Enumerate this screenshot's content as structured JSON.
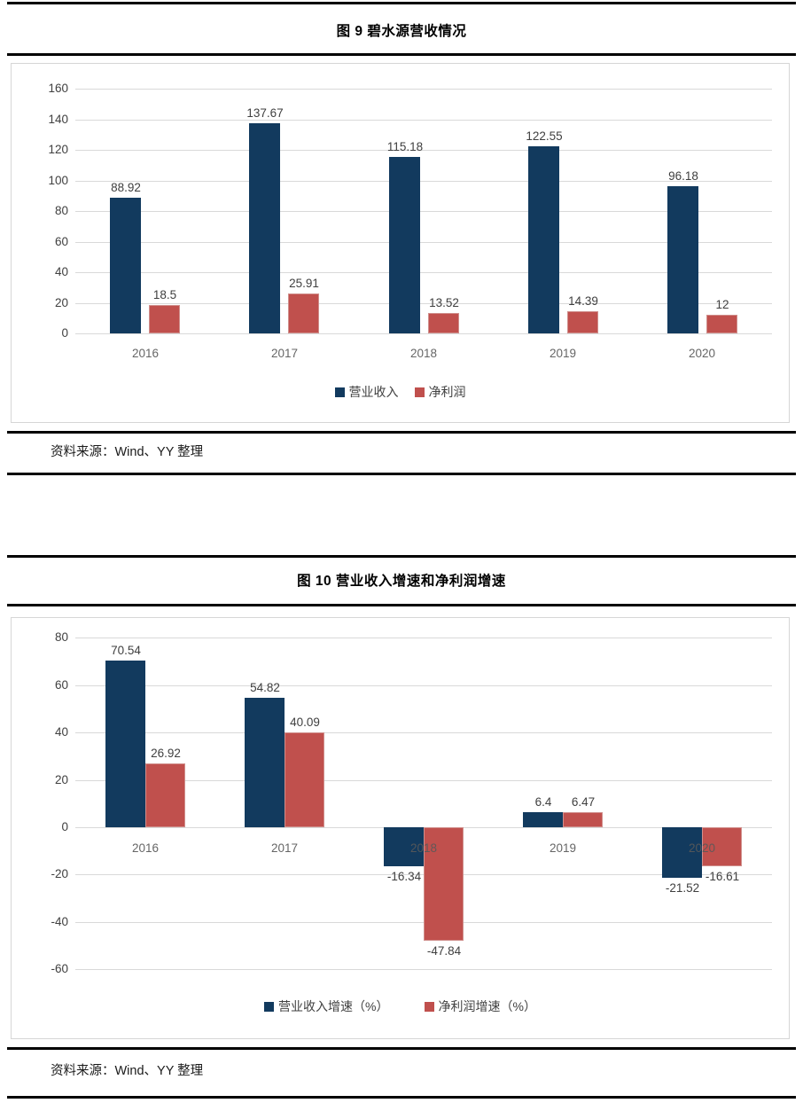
{
  "page": {
    "figure9": {
      "title": "图 9 碧水源营收情况",
      "source": "资料来源：Wind、YY 整理"
    },
    "figure10": {
      "title": "图 10 营业收入增速和净利润增速",
      "source": "资料来源：Wind、YY 整理"
    }
  },
  "colors": {
    "revenue_bar": "#123a5e",
    "profit_bar": "#c0504d",
    "gridline": "#d9d9d9",
    "tick_text": "#404040",
    "category_text": "#595959",
    "rule": "#000000"
  },
  "chart_data": [
    {
      "type": "bar",
      "title": "图 9 碧水源营收情况",
      "categories": [
        "2016",
        "2017",
        "2018",
        "2019",
        "2020"
      ],
      "series": [
        {
          "name": "营业收入",
          "color": "#123a5e",
          "values": [
            88.92,
            137.67,
            115.18,
            122.55,
            96.18
          ]
        },
        {
          "name": "净利润",
          "color": "#c0504d",
          "values": [
            18.5,
            25.91,
            13.52,
            14.39,
            12
          ]
        }
      ],
      "y_ticks": [
        160,
        140,
        120,
        100,
        80,
        60,
        40,
        20,
        0
      ],
      "ylim": [
        0,
        160
      ],
      "xlabel": "",
      "ylabel": "",
      "grid": true,
      "legend_position": "bottom"
    },
    {
      "type": "bar",
      "title": "图 10 营业收入增速和净利润增速",
      "categories": [
        "2016",
        "2017",
        "2018",
        "2019",
        "2020"
      ],
      "series": [
        {
          "name": "营业收入增速（%）",
          "color": "#123a5e",
          "values": [
            70.54,
            54.82,
            -16.34,
            6.4,
            -21.52
          ]
        },
        {
          "name": "净利润增速（%）",
          "color": "#c0504d",
          "values": [
            26.92,
            40.09,
            -47.84,
            6.47,
            -16.61
          ]
        }
      ],
      "y_ticks": [
        80,
        60,
        40,
        20,
        0,
        -20,
        -40,
        -60
      ],
      "ylim": [
        -60,
        80
      ],
      "xlabel": "",
      "ylabel": "",
      "grid": true,
      "legend_position": "bottom"
    }
  ]
}
